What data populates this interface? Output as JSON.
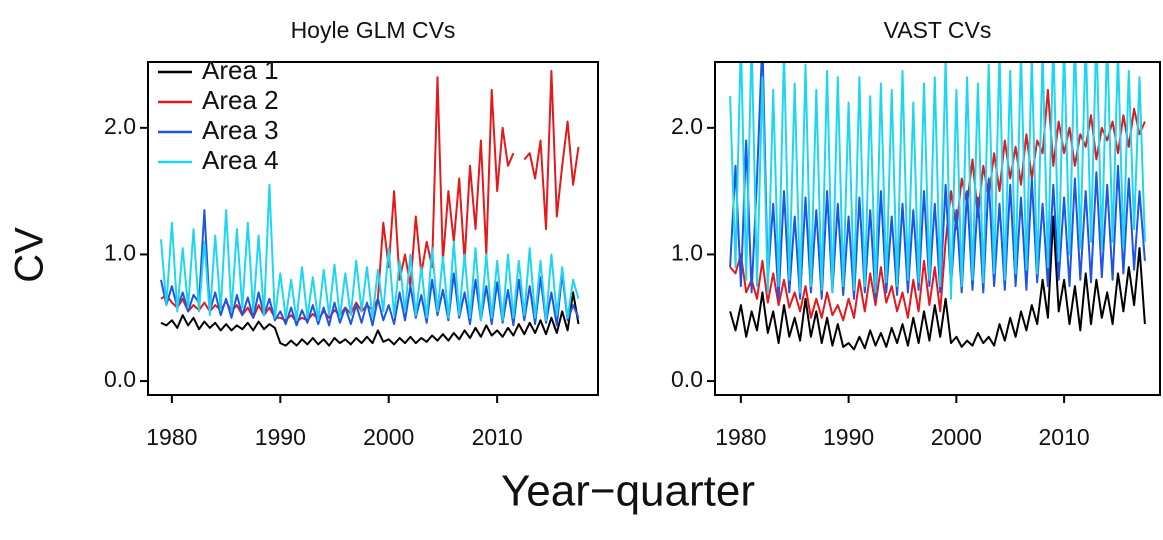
{
  "xlabel": "Year−quarter",
  "chart_data": [
    {
      "type": "line",
      "title": "Hoyle GLM CVs",
      "ylabel": "CV",
      "legend": "top-left",
      "xlim": [
        1977.8,
        2019.3
      ],
      "ylim": [
        -0.11,
        2.52
      ],
      "xticks": [
        1980,
        1990,
        2000,
        2010
      ],
      "yticks": [
        {
          "value": 0,
          "label": "0.0"
        },
        {
          "value": 1,
          "label": "1.0"
        },
        {
          "value": 2,
          "label": "2.0"
        }
      ],
      "x": [
        1979,
        1979.5,
        1980,
        1980.5,
        1981,
        1981.5,
        1982,
        1982.5,
        1983,
        1983.5,
        1984,
        1984.5,
        1985,
        1985.5,
        1986,
        1986.5,
        1987,
        1987.5,
        1988,
        1988.5,
        1989,
        1989.5,
        1990,
        1990.5,
        1991,
        1991.5,
        1992,
        1992.5,
        1993,
        1993.5,
        1994,
        1994.5,
        1995,
        1995.5,
        1996,
        1996.5,
        1997,
        1997.5,
        1998,
        1998.5,
        1999,
        1999.5,
        2000,
        2000.5,
        2001,
        2001.5,
        2002,
        2002.5,
        2003,
        2003.5,
        2004,
        2004.5,
        2005,
        2005.5,
        2006,
        2006.5,
        2007,
        2007.5,
        2008,
        2008.5,
        2009,
        2009.5,
        2010,
        2010.5,
        2011,
        2011.5,
        2012,
        2012.5,
        2013,
        2013.5,
        2014,
        2014.5,
        2015,
        2015.5,
        2016,
        2016.5,
        2017,
        2017.5
      ],
      "series": [
        {
          "name": "Area 1",
          "color": "#000000",
          "values": [
            0.46,
            0.44,
            0.48,
            0.42,
            0.52,
            0.44,
            0.5,
            0.41,
            0.47,
            0.42,
            0.46,
            0.4,
            0.45,
            0.4,
            0.44,
            0.41,
            0.46,
            0.4,
            0.47,
            0.41,
            0.45,
            0.42,
            0.3,
            0.28,
            0.32,
            0.28,
            0.33,
            0.29,
            0.34,
            0.29,
            0.33,
            0.28,
            0.34,
            0.3,
            0.33,
            0.29,
            0.34,
            0.3,
            0.35,
            0.3,
            0.4,
            0.31,
            0.33,
            0.29,
            0.34,
            0.3,
            0.35,
            0.3,
            0.34,
            0.31,
            0.36,
            0.32,
            0.37,
            0.32,
            0.38,
            0.33,
            0.4,
            0.34,
            0.42,
            0.35,
            0.44,
            0.36,
            0.4,
            0.35,
            0.42,
            0.36,
            0.45,
            0.37,
            0.46,
            0.38,
            0.48,
            0.37,
            0.5,
            0.38,
            0.55,
            0.4,
            0.7,
            0.45
          ]
        },
        {
          "name": "Area 2",
          "color": "#e31a1c",
          "values": [
            0.65,
            0.68,
            0.62,
            0.58,
            0.65,
            0.55,
            0.6,
            0.56,
            0.62,
            0.55,
            0.6,
            0.56,
            0.63,
            0.55,
            0.6,
            0.52,
            0.58,
            0.5,
            0.6,
            0.52,
            0.58,
            0.5,
            0.5,
            0.48,
            0.52,
            0.47,
            0.5,
            0.48,
            0.53,
            0.49,
            0.55,
            0.5,
            0.56,
            0.52,
            0.58,
            0.53,
            0.62,
            0.55,
            0.6,
            0.56,
            0.65,
            1.25,
            0.9,
            1.5,
            0.8,
            1.0,
            0.75,
            1.3,
            0.85,
            1.1,
            0.9,
            2.4,
            0.95,
            1.5,
            1.1,
            1.6,
            0.95,
            1.7,
            1.2,
            1.9,
            1.0,
            2.3,
            1.5,
            2.0,
            1.7,
            1.8,
            null,
            1.75,
            1.8,
            1.6,
            1.9,
            1.2,
            2.45,
            1.3,
            1.7,
            2.05,
            1.55,
            1.85
          ]
        },
        {
          "name": "Area 3",
          "color": "#1f55e6",
          "values": [
            0.8,
            0.6,
            0.75,
            0.58,
            0.7,
            0.55,
            0.68,
            0.62,
            1.35,
            0.55,
            0.7,
            0.52,
            0.65,
            0.5,
            0.68,
            0.52,
            0.66,
            0.5,
            0.7,
            0.52,
            0.65,
            0.48,
            0.55,
            0.45,
            0.58,
            0.44,
            0.56,
            0.46,
            0.6,
            0.45,
            0.58,
            0.44,
            0.62,
            0.46,
            0.58,
            0.45,
            0.6,
            0.46,
            0.62,
            0.44,
            0.65,
            0.48,
            0.6,
            0.45,
            0.7,
            0.48,
            0.75,
            0.5,
            0.68,
            0.46,
            0.8,
            0.52,
            0.72,
            0.48,
            0.85,
            0.5,
            0.7,
            0.45,
            0.8,
            0.48,
            0.75,
            0.45,
            0.78,
            0.46,
            0.72,
            0.44,
            0.8,
            0.48,
            0.75,
            0.45,
            0.82,
            0.46,
            0.7,
            0.44,
            0.85,
            0.48,
            0.6,
            0.5
          ]
        },
        {
          "name": "Area 4",
          "color": "#1ed6f2",
          "values": [
            1.12,
            0.6,
            1.25,
            0.55,
            1.05,
            0.58,
            1.2,
            0.55,
            1.1,
            0.52,
            1.15,
            0.56,
            1.35,
            0.55,
            1.2,
            0.58,
            1.25,
            0.55,
            1.15,
            0.52,
            1.55,
            0.5,
            0.85,
            0.5,
            0.8,
            0.48,
            0.9,
            0.5,
            0.82,
            0.48,
            0.88,
            0.52,
            0.92,
            0.5,
            0.85,
            0.52,
            0.95,
            0.55,
            0.9,
            0.5,
            0.88,
            0.55,
            1.05,
            0.52,
            0.95,
            0.55,
            1.0,
            0.52,
            0.9,
            0.5,
            1.05,
            0.55,
            0.98,
            0.5,
            1.1,
            0.52,
            1.0,
            0.5,
            1.05,
            0.48,
            1.0,
            0.5,
            0.95,
            0.48,
            1.0,
            0.5,
            0.95,
            0.52,
            1.05,
            0.5,
            0.95,
            0.48,
            1.0,
            0.52,
            0.9,
            0.5,
            0.8,
            0.65
          ]
        }
      ]
    },
    {
      "type": "line",
      "title": "VAST CVs",
      "xlim": [
        1977.6,
        2018.9
      ],
      "ylim": [
        -0.11,
        2.52
      ],
      "xticks": [
        1980,
        1990,
        2000,
        2010
      ],
      "yticks": [
        {
          "value": 0,
          "label": "0.0"
        },
        {
          "value": 1,
          "label": "1.0"
        },
        {
          "value": 2,
          "label": "2.0"
        }
      ],
      "x": [
        1979,
        1979.5,
        1980,
        1980.5,
        1981,
        1981.5,
        1982,
        1982.5,
        1983,
        1983.5,
        1984,
        1984.5,
        1985,
        1985.5,
        1986,
        1986.5,
        1987,
        1987.5,
        1988,
        1988.5,
        1989,
        1989.5,
        1990,
        1990.5,
        1991,
        1991.5,
        1992,
        1992.5,
        1993,
        1993.5,
        1994,
        1994.5,
        1995,
        1995.5,
        1996,
        1996.5,
        1997,
        1997.5,
        1998,
        1998.5,
        1999,
        1999.5,
        2000,
        2000.5,
        2001,
        2001.5,
        2002,
        2002.5,
        2003,
        2003.5,
        2004,
        2004.5,
        2005,
        2005.5,
        2006,
        2006.5,
        2007,
        2007.5,
        2008,
        2008.5,
        2009,
        2009.5,
        2010,
        2010.5,
        2011,
        2011.5,
        2012,
        2012.5,
        2013,
        2013.5,
        2014,
        2014.5,
        2015,
        2015.5,
        2016,
        2016.5,
        2017,
        2017.5
      ],
      "series": [
        {
          "name": "Area 1",
          "color": "#000000",
          "values": [
            0.55,
            0.4,
            0.6,
            0.35,
            0.55,
            0.4,
            0.7,
            0.38,
            0.55,
            0.3,
            0.6,
            0.35,
            0.5,
            0.32,
            0.65,
            0.35,
            0.55,
            0.3,
            0.5,
            0.28,
            0.45,
            0.27,
            0.3,
            0.25,
            0.35,
            0.26,
            0.4,
            0.28,
            0.38,
            0.27,
            0.42,
            0.3,
            0.45,
            0.28,
            0.5,
            0.3,
            0.55,
            0.32,
            0.6,
            0.35,
            0.65,
            0.3,
            0.35,
            0.27,
            0.32,
            0.28,
            0.38,
            0.3,
            0.35,
            0.28,
            0.45,
            0.32,
            0.5,
            0.35,
            0.55,
            0.4,
            0.6,
            0.45,
            0.8,
            0.5,
            1.3,
            0.55,
            0.8,
            0.45,
            0.75,
            0.4,
            0.85,
            0.45,
            0.8,
            0.5,
            0.7,
            0.45,
            0.85,
            0.55,
            0.9,
            0.6,
            1.05,
            0.45
          ]
        },
        {
          "name": "Area 2",
          "color": "#e31a1c",
          "values": [
            0.9,
            0.85,
            1.0,
            0.7,
            0.8,
            0.65,
            0.95,
            0.62,
            0.85,
            0.6,
            0.8,
            0.58,
            0.7,
            0.55,
            0.75,
            0.5,
            0.65,
            0.5,
            0.7,
            0.52,
            0.6,
            0.48,
            0.65,
            0.5,
            0.8,
            0.55,
            0.85,
            0.6,
            0.9,
            0.62,
            0.75,
            0.55,
            0.7,
            0.5,
            0.8,
            0.55,
            0.95,
            0.6,
            0.9,
            0.55,
            1.1,
            1.5,
            1.2,
            1.6,
            1.4,
            1.75,
            1.3,
            1.7,
            1.45,
            1.8,
            1.5,
            1.9,
            1.6,
            1.85,
            1.55,
            1.95,
            1.6,
            1.9,
            1.8,
            2.3,
            1.7,
            2.05,
            1.8,
            2.0,
            1.7,
            1.95,
            1.85,
            2.1,
            1.75,
            2.0,
            1.9,
            2.05,
            1.8,
            2.1,
            1.85,
            2.15,
            1.95,
            2.05
          ]
        },
        {
          "name": "Area 3",
          "color": "#1f55e6",
          "values": [
            0.9,
            1.7,
            0.75,
            1.9,
            0.7,
            1.6,
            2.7,
            0.8,
            1.4,
            0.65,
            1.5,
            0.7,
            1.3,
            0.65,
            1.45,
            0.7,
            1.35,
            0.65,
            1.5,
            0.7,
            1.4,
            0.68,
            1.3,
            0.65,
            1.45,
            0.7,
            1.35,
            0.65,
            1.5,
            0.7,
            1.3,
            0.68,
            1.4,
            0.7,
            1.35,
            0.72,
            1.5,
            0.75,
            1.4,
            0.7,
            1.55,
            0.75,
            1.35,
            0.7,
            1.5,
            0.72,
            1.45,
            0.7,
            1.6,
            0.75,
            1.4,
            0.72,
            1.55,
            0.75,
            1.45,
            0.72,
            1.6,
            0.78,
            1.4,
            0.75,
            1.55,
            0.8,
            1.45,
            0.75,
            1.6,
            0.8,
            1.5,
            0.78,
            1.65,
            0.82,
            1.55,
            0.8,
            1.7,
            0.85,
            1.6,
            0.88,
            1.5,
            0.95
          ]
        },
        {
          "name": "Area 4",
          "color": "#1ed6f2",
          "values": [
            2.25,
            0.9,
            2.7,
            0.8,
            2.7,
            0.75,
            2.4,
            0.7,
            2.3,
            0.75,
            2.6,
            0.8,
            2.35,
            0.7,
            2.5,
            0.75,
            2.3,
            0.72,
            2.45,
            0.7,
            2.4,
            0.75,
            2.2,
            0.72,
            2.4,
            0.75,
            2.25,
            0.7,
            2.35,
            0.78,
            2.3,
            0.75,
            2.45,
            0.8,
            2.2,
            0.78,
            2.35,
            0.8,
            2.4,
            0.75,
            2.55,
            0.65,
            2.3,
            0.75,
            2.4,
            0.8,
            2.35,
            0.78,
            2.5,
            0.85,
            2.6,
            0.8,
            2.45,
            0.85,
            2.6,
            0.88,
            2.55,
            0.85,
            2.6,
            0.9,
            2.7,
            0.95,
            2.65,
            1.0,
            2.7,
            1.05,
            2.7,
            1.1,
            2.75,
            1.05,
            2.7,
            1.1,
            2.6,
            1.05,
            2.45,
            1.2,
            2.4,
            1.1
          ]
        }
      ]
    }
  ]
}
